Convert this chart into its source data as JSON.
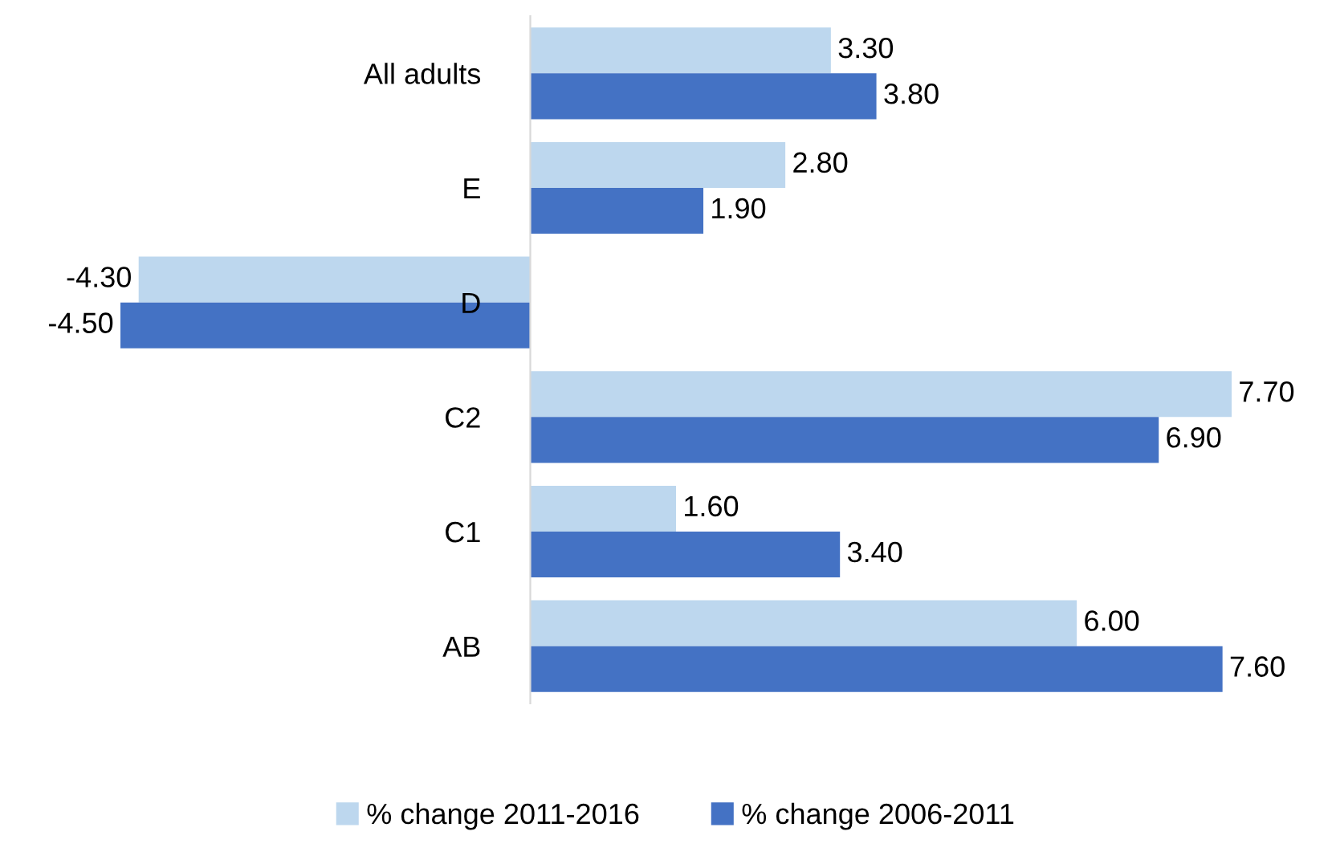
{
  "chart_data": {
    "type": "bar",
    "orientation": "horizontal",
    "categories": [
      "All adults",
      "E",
      "D",
      "C2",
      "C1",
      "AB"
    ],
    "series": [
      {
        "name": "% change 2011-2016",
        "color": "#bdd7ee",
        "values": [
          3.3,
          2.8,
          -4.3,
          7.7,
          1.6,
          6.0
        ],
        "value_labels": [
          "3.30",
          "2.80",
          "-4.30",
          "7.70",
          "1.60",
          "6.00"
        ]
      },
      {
        "name": "% change 2006-2011",
        "color": "#4472c4",
        "values": [
          3.8,
          1.9,
          -4.5,
          6.9,
          3.4,
          7.6
        ],
        "value_labels": [
          "3.80",
          "1.90",
          "-4.50",
          "6.90",
          "3.40",
          "7.60"
        ]
      }
    ],
    "tick_labels": "y",
    "grid": false,
    "legend": "bottom"
  }
}
